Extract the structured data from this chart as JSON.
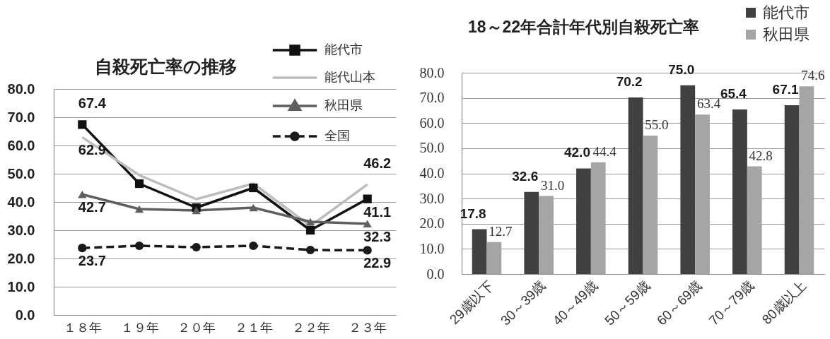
{
  "chart_data": [
    {
      "type": "line",
      "title": "自殺死亡率の推移",
      "categories": [
        "１８年",
        "１９年",
        "２０年",
        "２１年",
        "２２年",
        "２３年"
      ],
      "series": [
        {
          "name": "能代市",
          "color": "#111111",
          "marker": "square",
          "values": [
            67.4,
            46.5,
            38.0,
            45.0,
            30.0,
            41.1
          ],
          "value_labels": [
            "67.4",
            null,
            null,
            null,
            null,
            "41.1"
          ]
        },
        {
          "name": "能代山本",
          "color": "#bdbdbd",
          "marker": "none",
          "values": [
            62.9,
            49.5,
            41.0,
            46.5,
            31.5,
            46.2
          ],
          "value_labels": [
            "62.9",
            null,
            null,
            null,
            null,
            "46.2"
          ]
        },
        {
          "name": "秋田県",
          "color": "#5f5f5f",
          "marker": "triangle",
          "values": [
            42.7,
            37.5,
            37.0,
            38.0,
            33.0,
            32.3
          ],
          "value_labels": [
            "42.7",
            null,
            null,
            null,
            null,
            "32.3"
          ]
        },
        {
          "name": "全国",
          "color": "#1a1a1a",
          "marker": "circle",
          "line_style": "dashed",
          "values": [
            23.7,
            24.5,
            24.0,
            24.5,
            23.0,
            22.9
          ],
          "value_labels": [
            "23.7",
            null,
            null,
            null,
            null,
            "22.9"
          ]
        }
      ],
      "ylim": [
        0,
        80
      ],
      "yticks": [
        {
          "value": 0,
          "label": "0.0"
        },
        {
          "value": 10,
          "label": "10.0"
        },
        {
          "value": 20,
          "label": "20.0"
        },
        {
          "value": 30,
          "label": "30.0"
        },
        {
          "value": 40,
          "label": "40.0"
        },
        {
          "value": 50,
          "label": "50.0"
        },
        {
          "value": 60,
          "label": "60.0"
        },
        {
          "value": 70,
          "label": "70.0"
        },
        {
          "value": 80,
          "label": "80.0"
        }
      ],
      "grid": "y",
      "legend": "top right"
    },
    {
      "type": "bar",
      "title": "18～22年合計年代別自殺死亡率",
      "categories": [
        "29歳以下",
        "30～39歳",
        "40～49歳",
        "50～59歳",
        "60～69歳",
        "70～79歳",
        "80歳以上"
      ],
      "series": [
        {
          "name": "能代市",
          "color": "#404040",
          "values": [
            17.8,
            32.6,
            42.0,
            70.2,
            75.0,
            65.4,
            67.1
          ],
          "value_labels": [
            "17.8",
            "32.6",
            "42.0",
            "70.2",
            "75.0",
            "65.4",
            "67.1"
          ]
        },
        {
          "name": "秋田県",
          "color": "#a5a5a5",
          "values": [
            12.7,
            31.0,
            44.4,
            55.0,
            63.4,
            42.8,
            74.6
          ],
          "value_labels": [
            "12.7",
            "31.0",
            "44.4",
            "55.0",
            "63.4",
            "42.8",
            "74.6"
          ]
        }
      ],
      "ylim": [
        0,
        80
      ],
      "yticks": [
        {
          "value": 0,
          "label": "0.0"
        },
        {
          "value": 10,
          "label": "10.0"
        },
        {
          "value": 20,
          "label": "20.0"
        },
        {
          "value": 30,
          "label": "30.0"
        },
        {
          "value": 40,
          "label": "40.0"
        },
        {
          "value": 50,
          "label": "50.0"
        },
        {
          "value": 60,
          "label": "60.0"
        },
        {
          "value": 70,
          "label": "70.0"
        },
        {
          "value": 80,
          "label": "80.0"
        }
      ],
      "grid": "y",
      "legend": "top right"
    }
  ]
}
